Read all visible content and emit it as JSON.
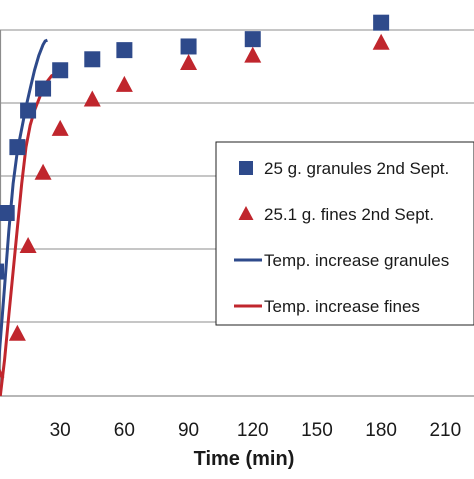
{
  "chart_data": {
    "type": "scatter",
    "title": "",
    "xlabel": "Time (min)",
    "ylabel": "",
    "x_ticks": [
      30,
      60,
      90,
      120,
      150,
      180,
      210
    ],
    "xlim": [
      0,
      222
    ],
    "ylim": [
      0,
      10
    ],
    "grid": "horizontal",
    "legend_position": "right",
    "series": [
      {
        "name": "25 g. granules 2nd Sept.",
        "kind": "markers",
        "marker": "square",
        "color": "#2e4a8b",
        "x": [
          0,
          5,
          10,
          15,
          22,
          30,
          45,
          60,
          90,
          120,
          180
        ],
        "y": [
          3.4,
          5.0,
          6.8,
          7.8,
          8.4,
          8.9,
          9.2,
          9.45,
          9.55,
          9.75,
          10.2
        ]
      },
      {
        "name": "25.1 g. fines 2nd Sept.",
        "kind": "markers",
        "marker": "triangle",
        "color": "#c0262d",
        "x": [
          0,
          10,
          15,
          22,
          30,
          45,
          60,
          90,
          120,
          180
        ],
        "y": [
          0.7,
          1.7,
          4.1,
          6.1,
          7.3,
          8.1,
          8.5,
          9.1,
          9.3,
          9.65
        ]
      },
      {
        "name": "Temp. increase granules",
        "kind": "line",
        "color": "#2e4a8b",
        "x": [
          0,
          2,
          4,
          6,
          8,
          10,
          12,
          14,
          16,
          18,
          20,
          22,
          23,
          24
        ],
        "y": [
          0.0,
          1.5,
          3.0,
          4.5,
          5.8,
          6.7,
          7.3,
          7.9,
          8.4,
          8.9,
          9.3,
          9.6,
          9.7,
          9.72
        ]
      },
      {
        "name": "Temp. increase fines",
        "kind": "line",
        "color": "#c0262d",
        "x": [
          2,
          4,
          6,
          8,
          10,
          12,
          14,
          16,
          18,
          20,
          22,
          24,
          26,
          28,
          30,
          32
        ],
        "y": [
          0.0,
          1.0,
          2.2,
          3.4,
          4.6,
          5.8,
          6.8,
          7.4,
          7.8,
          8.1,
          8.4,
          8.6,
          8.75,
          8.8,
          8.82,
          8.82
        ]
      }
    ]
  }
}
